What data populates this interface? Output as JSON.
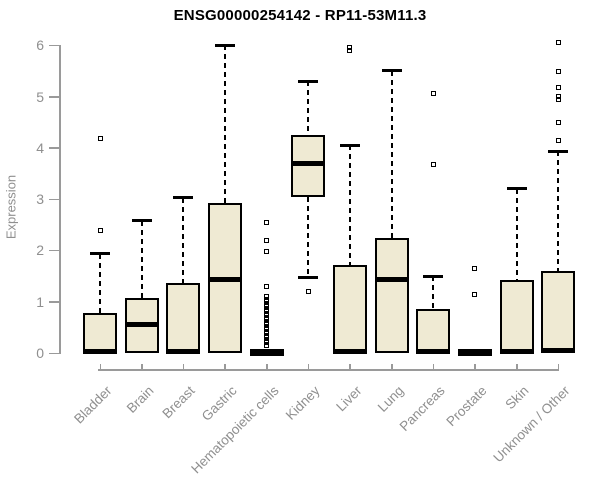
{
  "chart_data": {
    "type": "boxplot",
    "title": "ENSG00000254142 - RP11-53M11.3",
    "ylabel": "Expression",
    "xlabel": "",
    "ylim": [
      0,
      6
    ],
    "yticks": [
      0,
      1,
      2,
      3,
      4,
      5,
      6
    ],
    "grid": "off",
    "legend": "none",
    "categories": [
      "Bladder",
      "Brain",
      "Breast",
      "Gastric",
      "Hematopoietic cells",
      "Kidney",
      "Liver",
      "Lung",
      "Pancreas",
      "Prostate",
      "Skin",
      "Unknown / Other"
    ],
    "boxes": [
      {
        "category": "Bladder",
        "whisker_low": 0,
        "q1": 0,
        "median": 0.03,
        "q3": 0.78,
        "whisker_high": 1.93,
        "outliers": [
          2.38,
          4.18
        ]
      },
      {
        "category": "Brain",
        "whisker_low": 0,
        "q1": 0,
        "median": 0.55,
        "q3": 1.07,
        "whisker_high": 2.58,
        "outliers": []
      },
      {
        "category": "Breast",
        "whisker_low": 0,
        "q1": 0,
        "median": 0.03,
        "q3": 1.37,
        "whisker_high": 3.03,
        "outliers": []
      },
      {
        "category": "Gastric",
        "whisker_low": 0,
        "q1": 0,
        "median": 1.43,
        "q3": 2.92,
        "whisker_high": 6.0,
        "outliers": []
      },
      {
        "category": "Hematopoietic cells",
        "whisker_low": 0.02,
        "q1": 0.02,
        "median": 0.02,
        "q3": 0.02,
        "whisker_high": 0.02,
        "outliers": [
          0.15,
          0.2,
          0.25,
          0.3,
          0.35,
          0.4,
          0.45,
          0.5,
          0.55,
          0.6,
          0.65,
          0.7,
          0.75,
          0.8,
          0.85,
          0.9,
          0.95,
          1.0,
          1.05,
          1.1,
          1.3,
          1.97,
          2.2,
          2.55
        ]
      },
      {
        "category": "Kidney",
        "whisker_low": 1.48,
        "q1": 3.05,
        "median": 3.7,
        "q3": 4.25,
        "whisker_high": 5.3,
        "outliers": [
          1.2
        ]
      },
      {
        "category": "Liver",
        "whisker_low": 0,
        "q1": 0,
        "median": 0.03,
        "q3": 1.72,
        "whisker_high": 4.05,
        "outliers": [
          5.9,
          5.95
        ]
      },
      {
        "category": "Lung",
        "whisker_low": 0,
        "q1": 0,
        "median": 1.44,
        "q3": 2.24,
        "whisker_high": 5.5,
        "outliers": []
      },
      {
        "category": "Pancreas",
        "whisker_low": 0,
        "q1": 0,
        "median": 0.03,
        "q3": 0.85,
        "whisker_high": 1.5,
        "outliers": [
          3.68,
          5.05
        ]
      },
      {
        "category": "Prostate",
        "whisker_low": 0.02,
        "q1": 0.02,
        "median": 0.02,
        "q3": 0.02,
        "whisker_high": 0.02,
        "outliers": [
          1.15,
          1.65
        ]
      },
      {
        "category": "Skin",
        "whisker_low": 0,
        "q1": 0,
        "median": 0.03,
        "q3": 1.43,
        "whisker_high": 3.2,
        "outliers": []
      },
      {
        "category": "Unknown / Other",
        "whisker_low": 0,
        "q1": 0,
        "median": 0.04,
        "q3": 1.6,
        "whisker_high": 3.93,
        "outliers": [
          4.15,
          4.5,
          4.95,
          5.0,
          5.17,
          5.48,
          6.05
        ]
      }
    ],
    "colors": {
      "box_fill": "#efead3",
      "box_border": "#000000",
      "median": "#000000",
      "whisker": "#000000",
      "axis": "#9a9a9a",
      "tick_label": "#8f8f8f",
      "title": "#000000"
    }
  }
}
